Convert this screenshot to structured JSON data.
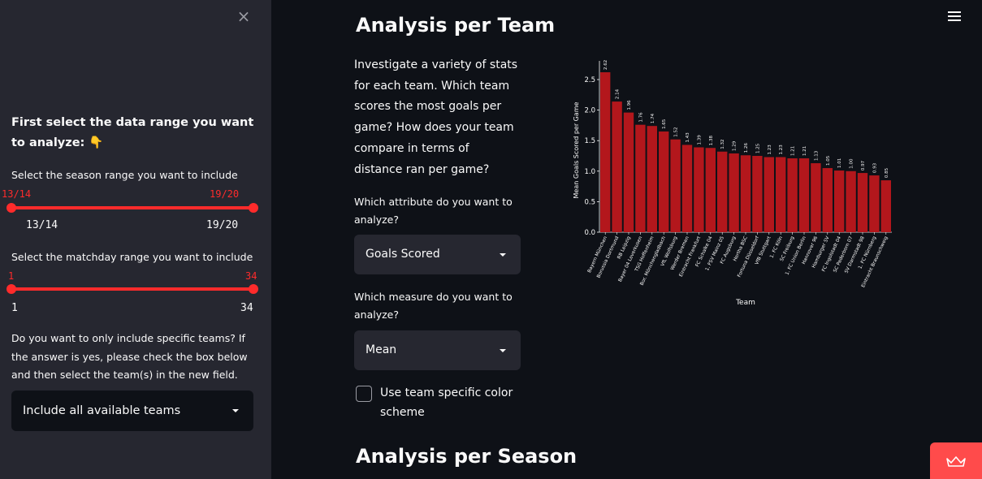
{
  "sidebar": {
    "close_icon": "×",
    "heading": "First select the data range you want to analyze: 👇",
    "season": {
      "label": "Select the season range you want to include",
      "selected_min": "13/14",
      "selected_max": "19/20",
      "min_tick": "13/14",
      "max_tick": "19/20"
    },
    "matchday": {
      "label": "Select the matchday range you want to include",
      "selected_min": "1",
      "selected_max": "34",
      "min_tick": "1",
      "max_tick": "34"
    },
    "teams_question": "Do you want to only include specific teams? If the answer is yes, please check the box below and then select the team(s) in the new field.",
    "teams_select_value": "Include all available teams"
  },
  "main": {
    "title": "Analysis per Team",
    "intro": "Investigate a variety of stats for each team. Which team scores the most goals per game? How does your team compare in terms of distance ran per game?",
    "attribute_label": "Which attribute do you want to analyze?",
    "attribute_value": "Goals Scored",
    "measure_label": "Which measure do you want to analyze?",
    "measure_value": "Mean",
    "color_scheme_label": "Use team specific color scheme",
    "next_title": "Analysis per Season"
  },
  "colors": {
    "accent": "#ff2b2b",
    "bar": "#b3171c",
    "sidebar_bg": "#262730",
    "main_bg": "#0e1117"
  },
  "chart_data": {
    "type": "bar",
    "title": "",
    "xlabel": "Team",
    "ylabel": "Mean Goals Scored per Game",
    "ylim": [
      0,
      2.62
    ],
    "yticks": [
      "0.0",
      "0.5",
      "1.0",
      "1.5",
      "2.0",
      "2.5"
    ],
    "categories": [
      "Bayern München",
      "Borussia Dortmund",
      "RB Leipzig",
      "Bayer 04 Leverkusen",
      "TSG Hoffenheim",
      "Bor. Mönchengladbach",
      "VfL Wolfsburg",
      "Werder Bremen",
      "Eintracht Frankfurt",
      "FC Schalke 04",
      "1. FSV Mainz 05",
      "FC Augsburg",
      "Hertha BSC",
      "Fortuna Düsseldorf",
      "VfB Stuttgart",
      "1. FC Köln",
      "SC Freiburg",
      "1. FC Union Berlin",
      "Hannover 96",
      "Hamburger SV",
      "FC Ingolstadt 04",
      "SC Paderborn 07",
      "SV Darmstadt 98",
      "1. FC Nürnberg",
      "Eintracht Braunschweig"
    ],
    "values": [
      2.62,
      2.14,
      1.96,
      1.76,
      1.74,
      1.65,
      1.52,
      1.43,
      1.39,
      1.38,
      1.32,
      1.29,
      1.26,
      1.25,
      1.23,
      1.23,
      1.21,
      1.21,
      1.13,
      1.05,
      1.01,
      1.0,
      0.97,
      0.93,
      0.85
    ],
    "data_labels": [
      "2.62",
      "2.14",
      "1.96",
      "1.76",
      "1.74",
      "1.65",
      "1.52",
      "1.43",
      "1.39",
      "1.38",
      "1.32",
      "1.29",
      "1.26",
      "1.25",
      "1.23",
      "1.23",
      "1.21",
      "1.21",
      "1.13",
      "1.05",
      "1.01",
      "1.00",
      "0.97",
      "0.93",
      "0.85"
    ]
  }
}
